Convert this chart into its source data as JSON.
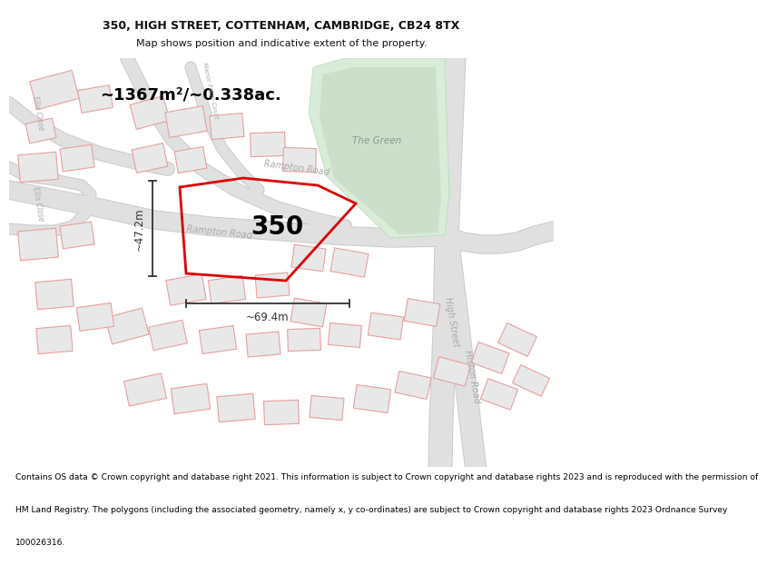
{
  "title_line1": "350, HIGH STREET, COTTENHAM, CAMBRIDGE, CB24 8TX",
  "title_line2": "Map shows position and indicative extent of the property.",
  "area_label": "~1367m²/~0.338ac.",
  "plot_number": "350",
  "dim_width": "~69.4m",
  "dim_height": "~47.2m",
  "footer_lines": [
    "Contains OS data © Crown copyright and database right 2021. This information is subject to Crown copyright and database rights 2023 and is reproduced with the permission of",
    "HM Land Registry. The polygons (including the associated geometry, namely x, y co-ordinates) are subject to Crown copyright and database rights 2023 Ordnance Survey",
    "100026316."
  ],
  "bg_color": "#ffffff",
  "map_bg": "#ffffff",
  "building_face": "#e8e8e8",
  "building_edge": "#e8a0a0",
  "road_fill": "#e0e0e0",
  "road_edge": "#cccccc",
  "green_fill": "#d8ecd8",
  "green_edge": "#b8d8b8",
  "green_dark": "#b8ccb8",
  "plot_edge": "#dd0000",
  "dim_color": "#333333",
  "label_color": "#aaaaaa",
  "text_color": "#000000"
}
